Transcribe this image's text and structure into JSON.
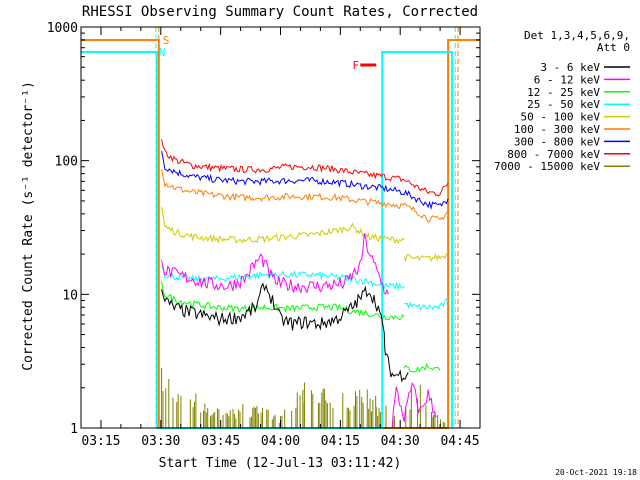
{
  "chart_data": {
    "type": "line",
    "title": "RHESSI Observing Summary Count Rates, Corrected",
    "xlabel": "Start Time (12-Jul-13 03:11:42)",
    "ylabel": "Corrected Count Rate (s⁻¹ detector⁻¹)",
    "timestamp": "20-Oct-2021 19:18",
    "y_scale": "log",
    "ylim": [
      1,
      1000
    ],
    "y_ticks": [
      1,
      10,
      100,
      1000
    ],
    "y_tick_labels": [
      "1",
      "10",
      "100",
      "1000"
    ],
    "xlim_minutes": [
      190,
      290
    ],
    "x_ticks_minutes": [
      195,
      210,
      225,
      240,
      255,
      270,
      285
    ],
    "x_tick_labels": [
      "03:15",
      "03:30",
      "03:45",
      "04:00",
      "04:15",
      "04:30",
      "04:45"
    ],
    "legend": {
      "header_line1": "Det 1,3,4,5,6,9,",
      "header_line2": "Att 0",
      "placement": "top-right"
    },
    "series": [
      {
        "name": "3 - 6 keV",
        "color": "#000000",
        "segments": [
          {
            "x": [
              210.2,
              211,
              213,
              216,
              220,
              225,
              230,
              234,
              236,
              238,
              240,
              243,
              246,
              250,
              254,
              258,
              262,
              264.5,
              266,
              266.3
            ],
            "y": [
              12,
              9,
              8,
              7.5,
              7,
              6.5,
              6.8,
              8,
              12,
              9,
              6.5,
              6,
              6.2,
              6,
              6.5,
              8,
              11,
              8,
              5,
              3.5
            ]
          },
          {
            "x": [
              266.3,
              268,
              270,
              272
            ],
            "y": [
              3.5,
              2.5,
              2.5,
              2.6
            ]
          }
        ]
      },
      {
        "name": "6 - 12 keV",
        "color": "#ff00ff",
        "segments": [
          {
            "x": [
              210.2,
              211,
              214,
              218,
              222,
              227,
              231,
              233,
              235,
              236,
              238,
              240,
              244,
              250,
              256,
              260,
              261,
              263,
              266,
              267
            ],
            "y": [
              20,
              15,
              14,
              13,
              12,
              11.5,
              13,
              16,
              19,
              17,
              13,
              12,
              11.5,
              11.5,
              12,
              16,
              26,
              18,
              11,
              10
            ]
          },
          {
            "x": [
              268,
              269,
              271,
              273,
              275,
              277,
              279
            ],
            "y": [
              1.1,
              1.9,
              1.2,
              2.1,
              1.3,
              1.8,
              1.2
            ]
          }
        ]
      },
      {
        "name": "12 - 25 keV",
        "color": "#00ff00",
        "segments": [
          {
            "x": [
              210.2,
              211,
              214,
              218,
              224,
              230,
              236,
              242,
              248,
              254,
              258,
              262,
              266,
              271
            ],
            "y": [
              12,
              10,
              9,
              8.5,
              8,
              7.8,
              8,
              7.8,
              8,
              8,
              7.5,
              7.2,
              6.8,
              6.8
            ]
          },
          {
            "x": [
              271,
              274,
              277,
              280
            ],
            "y": [
              2.8,
              2.7,
              2.9,
              2.7
            ]
          }
        ]
      },
      {
        "name": "25 - 50 keV",
        "color": "#00ffff",
        "segments": [
          {
            "x": [
              210.2,
              211,
              214,
              218,
              224,
              230,
              236,
              242,
              248,
              254,
              258,
              262,
              266,
              271
            ],
            "y": [
              17,
              14,
              13.5,
              13,
              13,
              13.5,
              14,
              14,
              14,
              13.5,
              13,
              12.5,
              11.5,
              11.5
            ]
          },
          {
            "x": [
              271,
              274,
              277,
              280,
              282
            ],
            "y": [
              8.5,
              8,
              8,
              8,
              9
            ]
          }
        ]
      },
      {
        "name": "50 - 100 keV",
        "color": "#cccc00",
        "segments": [
          {
            "x": [
              210.2,
              211,
              214,
              218,
              224,
              230,
              236,
              242,
              248,
              254,
              258,
              262,
              266,
              271
            ],
            "y": [
              45,
              32,
              29,
              27,
              26,
              25.5,
              26,
              27,
              28,
              30,
              32,
              27,
              26,
              25.5
            ]
          },
          {
            "x": [
              271,
              274,
              277,
              280,
              282
            ],
            "y": [
              19,
              18.5,
              18.5,
              19,
              20
            ]
          }
        ]
      },
      {
        "name": "100 - 300 keV",
        "color": "#ff7f00",
        "segments": [
          {
            "x": [
              210.2,
              211,
              214,
              218,
              224,
              230,
              236,
              242,
              248,
              254,
              260,
              266,
              271,
              274,
              277,
              280,
              282
            ],
            "y": [
              90,
              68,
              62,
              58,
              55,
              53,
              53,
              54,
              54,
              53,
              50,
              48,
              46,
              42,
              37,
              36,
              42
            ]
          }
        ]
      },
      {
        "name": "300 - 800 keV",
        "color": "#0000ff",
        "segments": [
          {
            "x": [
              210.2,
              211,
              214,
              218,
              224,
              230,
              236,
              242,
              248,
              254,
              260,
              266,
              271,
              274,
              277,
              280,
              282
            ],
            "y": [
              120,
              90,
              82,
              76,
              72,
              70,
              70,
              71,
              71,
              69,
              65,
              62,
              58,
              52,
              47,
              46,
              52
            ]
          }
        ]
      },
      {
        "name": "800 - 7000 keV",
        "color": "#ff0000",
        "segments": [
          {
            "x": [
              210.2,
              211,
              214,
              218,
              224,
              230,
              236,
              242,
              248,
              254,
              260,
              266,
              271,
              274,
              277,
              280,
              282
            ],
            "y": [
              150,
              115,
              100,
              92,
              88,
              86,
              86,
              90,
              90,
              86,
              80,
              76,
              72,
              64,
              58,
              57,
              68
            ]
          }
        ]
      },
      {
        "name": "7000 - 15000 keV",
        "color": "#808000",
        "segments": [
          {
            "x": [
              210.2,
              212,
              214,
              216,
              220,
              226,
              232,
              240,
              246,
              250,
              256,
              260,
              264,
              270,
              274,
              278,
              282
            ],
            "y": [
              2.6,
              2.4,
              1.6,
              2.2,
              1.5,
              1.3,
              1.5,
              1.2,
              2.0,
              2.0,
              1.8,
              2.0,
              1.6,
              1.2,
              2.2,
              1.3,
              1.2
            ]
          }
        ]
      }
    ],
    "state_lines": [
      {
        "name": "Attenuator state (orange)",
        "color": "#ff7f00",
        "x": [
          190,
          209.5,
          209.5,
          282,
          282,
          290
        ],
        "y": [
          800,
          800,
          1,
          1,
          800,
          800
        ]
      },
      {
        "name": "Night/SAA state (cyan)",
        "color": "#00ffff",
        "x": [
          190,
          209,
          209,
          265.5,
          265.5,
          283,
          283
        ],
        "y": [
          650,
          650,
          1,
          1,
          650,
          650,
          1
        ]
      }
    ],
    "dashed_markers": [
      {
        "color": "#ff7f00",
        "x": 209.5
      },
      {
        "color": "#00ffff",
        "x": 208.8
      },
      {
        "color": "#00ffff",
        "x": 283.8
      },
      {
        "color": "#ff7f00",
        "x": 284.5
      }
    ],
    "flag_labels": [
      {
        "text": "S",
        "color": "#ff7f00",
        "x": 210.5,
        "y": 800
      },
      {
        "text": "N",
        "color": "#00ffff",
        "x": 209.5,
        "y": 650
      },
      {
        "text": "F",
        "color": "#ff0000",
        "x": 258,
        "y": 520
      }
    ],
    "flare_bar": {
      "color": "#ff0000",
      "x": [
        260,
        264
      ],
      "y": 520
    }
  }
}
